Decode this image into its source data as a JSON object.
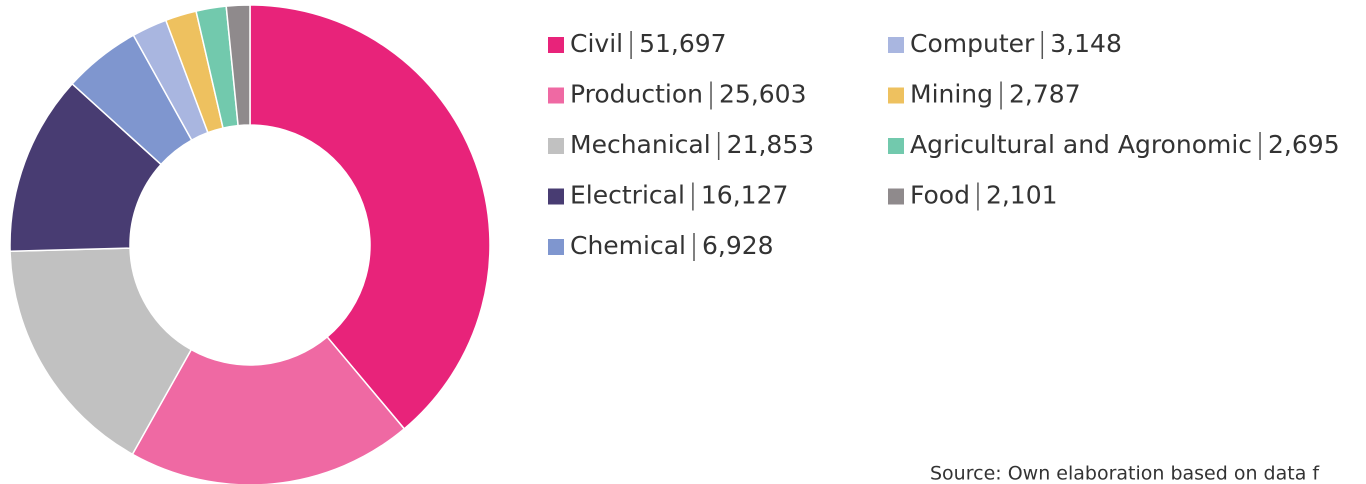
{
  "chart_data": {
    "type": "donut",
    "categories": [
      "Civil",
      "Production",
      "Mechanical",
      "Electrical",
      "Chemical",
      "Computer",
      "Mining",
      "Agricultural and Agronomic",
      "Food"
    ],
    "values": [
      51697,
      25603,
      21853,
      16127,
      6928,
      3148,
      2787,
      2695,
      2101
    ],
    "value_labels": [
      "51,697",
      "25,603",
      "21,853",
      "16,127",
      "6,928",
      "3,148",
      "2,787",
      "2,695",
      "2,101"
    ],
    "colors": [
      "#e8237a",
      "#ef69a3",
      "#c1c1c1",
      "#483c72",
      "#7f96cf",
      "#a9b6e0",
      "#eec15f",
      "#72c9ad",
      "#8f8a8c"
    ],
    "source": "Source: Own elaboration based on data f"
  }
}
